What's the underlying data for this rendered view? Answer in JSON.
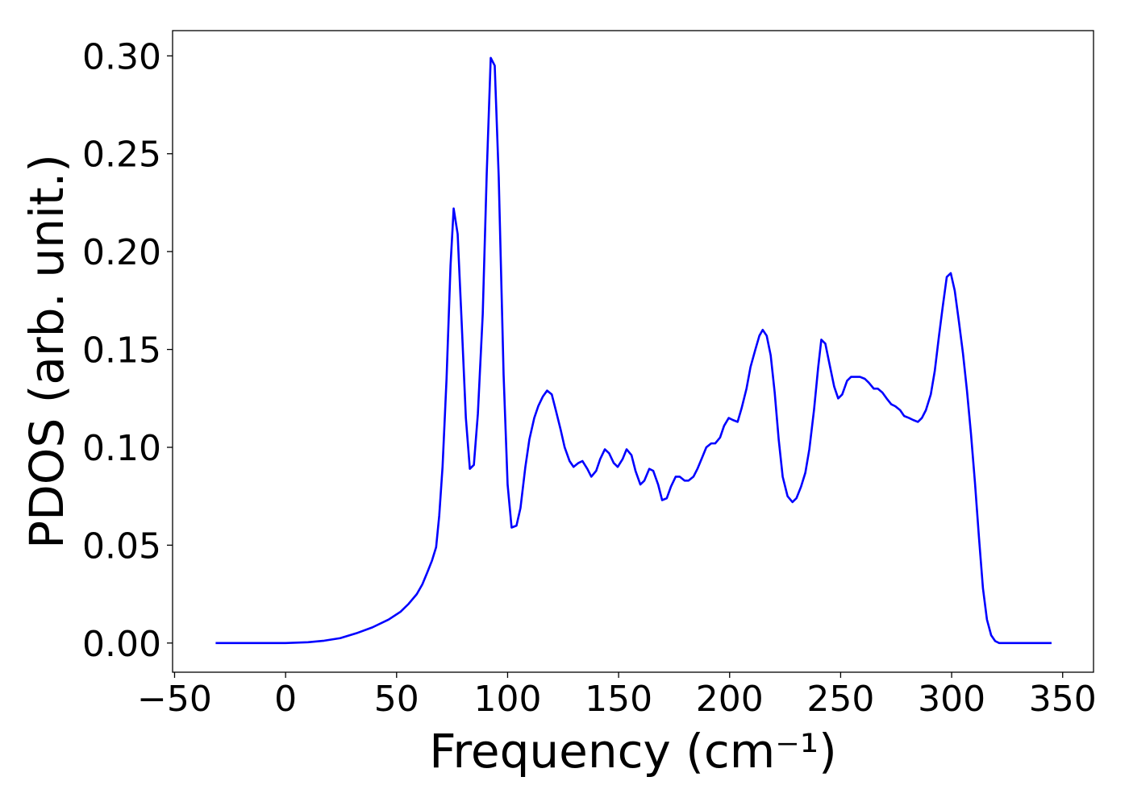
{
  "chart_data": {
    "type": "line",
    "x_label": "Frequency (cm⁻¹)",
    "y_label": "PDOS (arb. unit.)",
    "x": [
      -31.5,
      0,
      10.1,
      17.4,
      24.6,
      31.9,
      39.1,
      46.4,
      51.8,
      55.4,
      59.1,
      61.6,
      63.8,
      65.9,
      67.8,
      69.2,
      70.7,
      72.5,
      74.3,
      75.7,
      77.5,
      79.3,
      81.2,
      83,
      84.8,
      86.6,
      88.8,
      90.6,
      92.4,
      94.2,
      96,
      98.2,
      100,
      101.8,
      104,
      105.8,
      108,
      109.8,
      112,
      113.8,
      115.9,
      117.8,
      119.9,
      121.7,
      123.9,
      125.7,
      127.9,
      129.7,
      131.9,
      133.7,
      135.9,
      137.7,
      139.9,
      141.7,
      143.8,
      145.7,
      147.8,
      149.6,
      151.8,
      153.6,
      155.8,
      157.6,
      159.8,
      161.6,
      163.8,
      165.6,
      167.8,
      169.6,
      171.7,
      173.6,
      175.7,
      177.5,
      179.7,
      181.5,
      183.7,
      185.5,
      187.7,
      189.5,
      191.7,
      193.5,
      195.7,
      197.5,
      199.6,
      201.4,
      203.6,
      205.4,
      207.6,
      209.4,
      211.6,
      213.4,
      214.9,
      216.7,
      218.5,
      220.3,
      222.1,
      223.9,
      226.1,
      228.3,
      230.1,
      232.2,
      234.1,
      235.9,
      238,
      239.9,
      241.3,
      243.1,
      244.9,
      247.1,
      248.9,
      250.7,
      252.9,
      254.7,
      256.9,
      258.7,
      260.9,
      262.7,
      264.9,
      266.7,
      268.8,
      270.7,
      272.8,
      274.6,
      276.8,
      278.6,
      280.8,
      282.6,
      284.8,
      286.6,
      288.4,
      290.6,
      292.4,
      294.2,
      296,
      297.8,
      299.6,
      301.4,
      303.3,
      305.1,
      306.9,
      308.7,
      310.5,
      312.3,
      314.1,
      315.9,
      317.8,
      319.6,
      321.4,
      345
    ],
    "series": [
      {
        "color": "#0000ff",
        "values": [
          0,
          0,
          0.0004,
          0.0012,
          0.0025,
          0.005,
          0.008,
          0.012,
          0.016,
          0.02,
          0.025,
          0.03,
          0.036,
          0.042,
          0.049,
          0.065,
          0.09,
          0.135,
          0.193,
          0.222,
          0.209,
          0.164,
          0.115,
          0.089,
          0.091,
          0.117,
          0.168,
          0.24,
          0.299,
          0.295,
          0.238,
          0.137,
          0.081,
          0.059,
          0.06,
          0.069,
          0.09,
          0.104,
          0.115,
          0.121,
          0.126,
          0.129,
          0.127,
          0.119,
          0.109,
          0.1,
          0.093,
          0.09,
          0.092,
          0.093,
          0.089,
          0.085,
          0.088,
          0.094,
          0.099,
          0.097,
          0.092,
          0.09,
          0.094,
          0.099,
          0.096,
          0.088,
          0.081,
          0.083,
          0.089,
          0.088,
          0.081,
          0.073,
          0.074,
          0.08,
          0.085,
          0.085,
          0.083,
          0.083,
          0.085,
          0.089,
          0.095,
          0.1,
          0.102,
          0.102,
          0.105,
          0.111,
          0.115,
          0.114,
          0.113,
          0.12,
          0.13,
          0.141,
          0.15,
          0.157,
          0.16,
          0.157,
          0.147,
          0.128,
          0.104,
          0.085,
          0.075,
          0.072,
          0.074,
          0.08,
          0.087,
          0.099,
          0.119,
          0.141,
          0.155,
          0.153,
          0.143,
          0.131,
          0.125,
          0.127,
          0.134,
          0.136,
          0.136,
          0.136,
          0.135,
          0.133,
          0.13,
          0.13,
          0.128,
          0.125,
          0.122,
          0.121,
          0.119,
          0.116,
          0.115,
          0.114,
          0.113,
          0.115,
          0.119,
          0.127,
          0.139,
          0.156,
          0.172,
          0.187,
          0.189,
          0.18,
          0.164,
          0.148,
          0.129,
          0.107,
          0.082,
          0.054,
          0.028,
          0.012,
          0.004,
          0.001,
          0,
          0
        ]
      }
    ],
    "xlim": [
      -50.9,
      363.9
    ],
    "xticks": [
      {
        "value": -50,
        "label": "−50"
      },
      0,
      50,
      100,
      150,
      200,
      250,
      300,
      350
    ],
    "ylim": [
      -0.0149,
      0.3129
    ],
    "yticks": [
      {
        "value": 0,
        "label": "0.00"
      },
      0.05,
      {
        "value": 0.1,
        "label": "0.10"
      },
      0.15,
      {
        "value": 0.2,
        "label": "0.20"
      },
      0.25,
      {
        "value": 0.3,
        "label": "0.30"
      }
    ]
  }
}
